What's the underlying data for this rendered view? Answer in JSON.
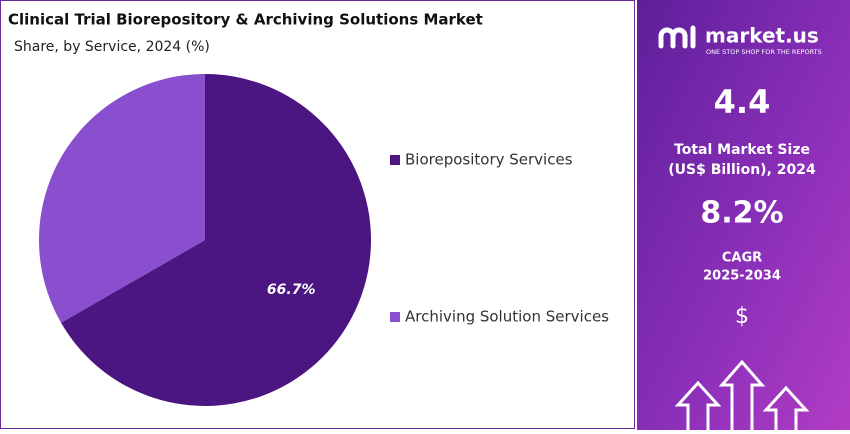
{
  "chart_data": {
    "type": "pie",
    "title": "Clinical Trial Biorepository & Archiving Solutions Market",
    "subtitle": "Share, by Service, 2024 (%)",
    "categories": [
      "Biorepository Services",
      "Archiving Solution Services"
    ],
    "values": [
      66.7,
      33.3
    ],
    "value_labels": [
      "66.7%",
      null
    ],
    "colors": [
      "#4b1681",
      "#8a4fcf"
    ],
    "legend": "right"
  },
  "sidebar": {
    "brand": "market.us",
    "tagline": "ONE STOP SHOP FOR THE REPORTS",
    "market_size": "4.4",
    "market_size_label": [
      "Total Market Size",
      "(US$ Billion), 2024"
    ],
    "cagr": "8.2%",
    "cagr_label": [
      "CAGR",
      "2025-2034"
    ],
    "currency": "$"
  }
}
